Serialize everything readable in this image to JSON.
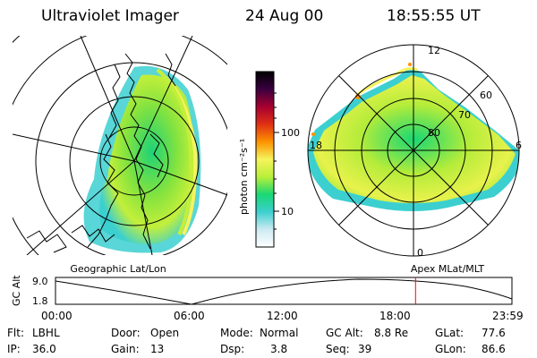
{
  "header": {
    "instrument": "Ultraviolet Imager",
    "date": "24 Aug 00",
    "time": "18:55:55 UT"
  },
  "colorbar": {
    "label": "photon cm⁻²s⁻¹",
    "ticks": [
      "100",
      "10"
    ],
    "scale": "log",
    "colors": [
      "#ffffff",
      "#cdeaf2",
      "#3ccfd0",
      "#19d873",
      "#b9ef3a",
      "#f6f35c",
      "#fd9200",
      "#e03015",
      "#a60030",
      "#3a0040",
      "#000000"
    ]
  },
  "left_map": {
    "caption": "Geographic Lat/Lon"
  },
  "right_map": {
    "caption": "Apex MLat/MLT",
    "mlt_labels": [
      "12",
      "18",
      "6",
      "0"
    ],
    "mlat_labels": [
      "60",
      "70",
      "80"
    ]
  },
  "timeline": {
    "ylabel": "GC Alt",
    "yticks": [
      "9.0",
      "1.8"
    ],
    "xticks": [
      "00:00",
      "06:00",
      "12:00",
      "18:00",
      "23:59"
    ],
    "current_hour": 18.93,
    "marker_color": "#ff0000"
  },
  "info": {
    "filter_label": "Flt:",
    "filter_value": "LBHL",
    "ip_label": "IP:",
    "ip_value": "36.0",
    "door_label": "Door:",
    "door_value": "Open",
    "gain_label": "Gain:",
    "gain_value": "13",
    "mode_label": "Mode:",
    "mode_value": "Normal",
    "dsp_label": "Dsp:",
    "dsp_value": "3.8",
    "gcalt_label": "GC Alt:",
    "gcalt_value": "8.8 Re",
    "seq_label": "Seq:",
    "seq_value": "39",
    "glat_label": "GLat:",
    "glat_value": "77.6",
    "glon_label": "GLon:",
    "glon_value": "86.6"
  }
}
